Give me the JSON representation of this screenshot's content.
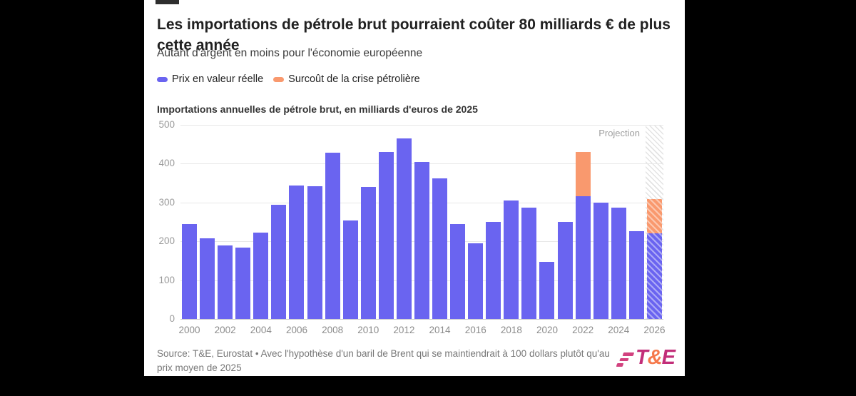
{
  "card": {
    "title": "Les importations de pétrole brut pourraient coûter 80 milliards € de plus cette année",
    "subtitle": "Autant d'argent en moins pour l'économie européenne",
    "chart_title": "Importations annuelles de pétrole brut, en milliards d'euros de 2025",
    "projection_label": "Projection",
    "source": "Source: T&E, Eurostat • Avec l'hypothèse d'un baril de Brent qui se maintiendrait à 100 dollars plutôt qu'au prix moyen de 2025",
    "logo": {
      "t": "T",
      "amp": "&",
      "e": "E"
    }
  },
  "colors": {
    "bar_blue": "#6a64f0",
    "bar_orange": "#f9996e",
    "grid": "#e8e8e8",
    "axis_text": "#9a9a9a",
    "projection_hatch": "#e3e3e3"
  },
  "chart_data": {
    "type": "bar",
    "stacked": true,
    "title": "Importations annuelles de pétrole brut, en milliards d'euros de 2025",
    "xlabel": "",
    "ylabel": "milliards d'euros de 2025",
    "ylim": [
      0,
      500
    ],
    "yticks": [
      0,
      100,
      200,
      300,
      400,
      500
    ],
    "grid": true,
    "legend_position": "top",
    "categories": [
      2000,
      2001,
      2002,
      2003,
      2004,
      2005,
      2006,
      2007,
      2008,
      2009,
      2010,
      2011,
      2012,
      2013,
      2014,
      2015,
      2016,
      2017,
      2018,
      2019,
      2020,
      2021,
      2022,
      2023,
      2024,
      2025,
      2026
    ],
    "xtick_labels": [
      "2000",
      "2002",
      "2004",
      "2006",
      "2008",
      "2010",
      "2012",
      "2014",
      "2016",
      "2018",
      "2020",
      "2022",
      "2024",
      "2026"
    ],
    "series": [
      {
        "name": "Prix en valeur réelle",
        "color": "#6a64f0",
        "values": [
          245,
          208,
          190,
          183,
          222,
          295,
          343,
          342,
          428,
          253,
          340,
          430,
          465,
          405,
          363,
          245,
          195,
          250,
          306,
          287,
          148,
          250,
          316,
          300,
          287,
          227,
          220
        ]
      },
      {
        "name": "Surcoût de la crise pétrolière",
        "color": "#f9996e",
        "values": [
          0,
          0,
          0,
          0,
          0,
          0,
          0,
          0,
          0,
          0,
          0,
          0,
          0,
          0,
          0,
          0,
          0,
          0,
          0,
          0,
          0,
          0,
          114,
          0,
          0,
          0,
          88
        ]
      }
    ],
    "projection_years": [
      2026
    ],
    "annotations": [
      "Projection"
    ]
  }
}
